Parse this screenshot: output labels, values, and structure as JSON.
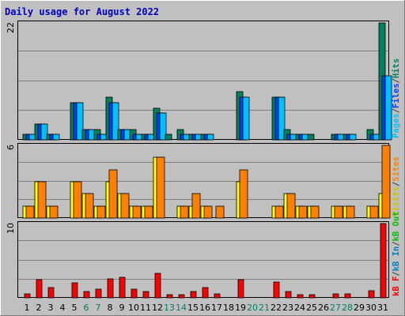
{
  "title": "Daily usage for August 2022",
  "colors": {
    "hits": "#00805c",
    "files": "#0040ff",
    "pages": "#00c0ff",
    "visits": "#ffff00",
    "sites": "#ff8000",
    "kb_f": "#ff0000",
    "kb_in": "#0080c0",
    "kb_out": "#00c000",
    "weekend_day": "#00805c",
    "title": "#0000c0"
  },
  "chart_data": {
    "type": "bar",
    "title": "Daily usage for August 2022",
    "days": [
      "1",
      "2",
      "3",
      "4",
      "5",
      "6",
      "7",
      "8",
      "9",
      "10",
      "11",
      "12",
      "13",
      "14",
      "15",
      "16",
      "17",
      "18",
      "19",
      "20",
      "21",
      "22",
      "23",
      "24",
      "25",
      "26",
      "27",
      "28",
      "29",
      "30",
      "31"
    ],
    "weekend_days": [
      "6",
      "7",
      "13",
      "14",
      "20",
      "21",
      "27",
      "28"
    ],
    "panels": [
      {
        "id": "hits",
        "ymax_label": "22",
        "ymax": 22,
        "legend": [
          {
            "text": "Pages",
            "color": "#00c0ff"
          },
          {
            "text": "/",
            "color": "#404040"
          },
          {
            "text": "Files",
            "color": "#0040ff"
          },
          {
            "text": "/",
            "color": "#404040"
          },
          {
            "text": "Hits",
            "color": "#00805c"
          }
        ],
        "series": [
          {
            "name": "Hits",
            "color": "#00805c",
            "values": [
              1,
              3,
              1,
              0,
              7,
              2,
              2,
              8,
              2,
              2,
              1,
              6,
              1,
              2,
              1,
              1,
              0,
              0,
              9,
              0,
              0,
              8,
              2,
              1,
              1,
              0,
              1,
              1,
              0,
              2,
              22
            ]
          },
          {
            "name": "Files",
            "color": "#0040ff",
            "values": [
              1,
              3,
              1,
              0,
              7,
              2,
              1,
              7,
              2,
              1,
              1,
              5,
              0,
              1,
              1,
              1,
              0,
              0,
              8,
              0,
              0,
              8,
              1,
              1,
              0,
              0,
              1,
              1,
              0,
              1,
              12
            ]
          },
          {
            "name": "Pages",
            "color": "#00c0ff",
            "values": [
              1,
              3,
              1,
              0,
              7,
              2,
              1,
              7,
              2,
              1,
              1,
              5,
              0,
              1,
              1,
              1,
              0,
              0,
              8,
              0,
              0,
              8,
              1,
              1,
              0,
              0,
              1,
              1,
              0,
              1,
              12
            ]
          }
        ]
      },
      {
        "id": "visits",
        "ymax_label": "6",
        "ymax": 6,
        "legend": [
          {
            "text": "Visits",
            "color": "#d0c000"
          },
          {
            "text": "/",
            "color": "#404040"
          },
          {
            "text": "Sites",
            "color": "#ff8000"
          }
        ],
        "series": [
          {
            "name": "Visits",
            "color": "#ffff00",
            "values": [
              1,
              3,
              1,
              0,
              3,
              2,
              1,
              3,
              2,
              1,
              1,
              5,
              0,
              1,
              1,
              1,
              0,
              0,
              3,
              0,
              0,
              1,
              2,
              1,
              1,
              0,
              1,
              1,
              0,
              1,
              2
            ]
          },
          {
            "name": "Sites",
            "color": "#ff8000",
            "values": [
              1,
              3,
              1,
              0,
              3,
              2,
              1,
              4,
              2,
              1,
              1,
              5,
              0,
              1,
              2,
              1,
              1,
              0,
              4,
              0,
              0,
              1,
              2,
              1,
              1,
              0,
              1,
              1,
              0,
              1,
              6
            ]
          }
        ]
      },
      {
        "id": "kbytes",
        "ymax_label": "10",
        "ymax": 10,
        "legend": [
          {
            "text": "kB F",
            "color": "#ff0000"
          },
          {
            "text": "/",
            "color": "#404040"
          },
          {
            "text": "kB In",
            "color": "#0080c0"
          },
          {
            "text": "/",
            "color": "#404040"
          },
          {
            "text": "kB Out",
            "color": "#00c000"
          }
        ],
        "series": [
          {
            "name": "kB F",
            "color": "#ff0000",
            "values": [
              0.5,
              2.4,
              1.4,
              0,
              2.0,
              0.8,
              1.2,
              2.6,
              2.8,
              1.2,
              0.9,
              3.3,
              0.4,
              0.4,
              0.9,
              1.4,
              0.5,
              0,
              2.4,
              0,
              0,
              2.1,
              0.8,
              0.4,
              0.4,
              0,
              0.5,
              0.5,
              0,
              1.0,
              10
            ]
          }
        ]
      }
    ]
  }
}
